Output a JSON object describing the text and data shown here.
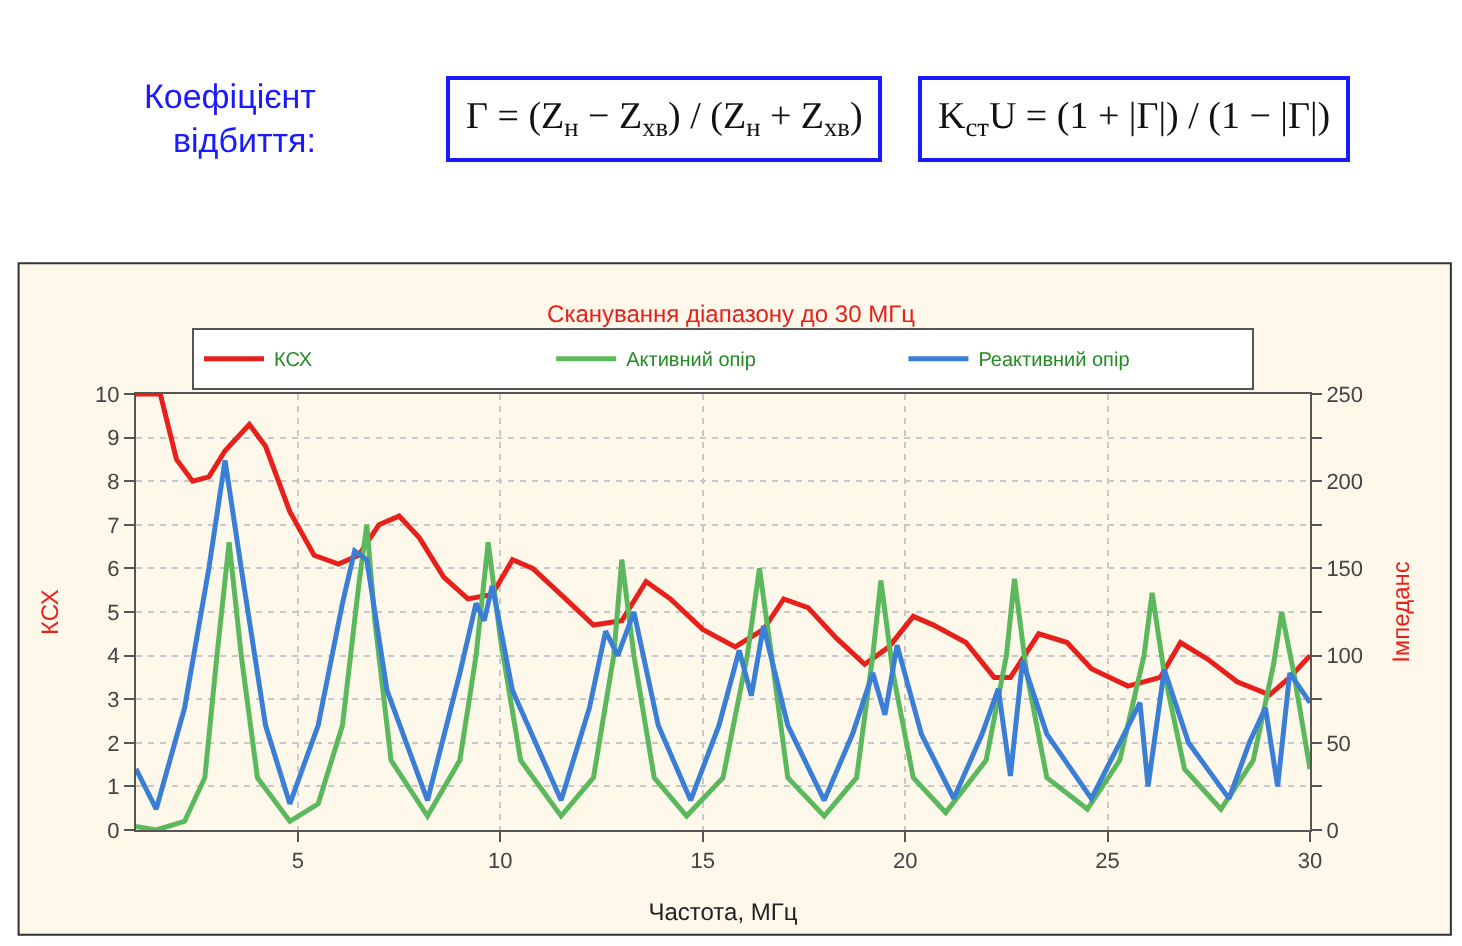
{
  "chart_data": {
    "type": "line",
    "title": "Сканування діапазону до 30 МГц",
    "xlabel": "Частота, МГц",
    "ylabel": "КСХ",
    "y2label": "Імпеданс",
    "annotations": [
      "Коефіцієнт відбиття:",
      "Γ = (Z$_{н}$ − Z$_{хв}$) / (Z$_{н}$ + Z$_{хв}$)",
      "K$_{ст}$U = (1 + |Γ|) / (1 − |Γ|)"
    ],
    "xlim": [
      1,
      30
    ],
    "xticks": [
      5,
      10,
      15,
      20,
      25,
      30
    ],
    "ylim": [
      0,
      10
    ],
    "yticks": [
      0,
      1,
      2,
      3,
      4,
      5,
      6,
      7,
      8,
      9,
      10
    ],
    "y2lim": [
      0,
      250
    ],
    "y2ticks": [
      0,
      {
        "value": 25,
        "label": null
      },
      50,
      {
        "value": 75,
        "label": null
      },
      100,
      {
        "value": 125,
        "label": null
      },
      150,
      {
        "value": 175,
        "label": null
      },
      200,
      {
        "value": 225,
        "label": null
      },
      250
    ],
    "grid": true,
    "legend": "top",
    "line_style": "solid",
    "marker": "none",
    "series": [
      {
        "name": "КСХ",
        "color": "#e8201c",
        "x": [
          1,
          1.6,
          2,
          2.4,
          2.8,
          3.2,
          3.8,
          4.2,
          4.8,
          5.4,
          6,
          6.5,
          7,
          7.5,
          8,
          8.6,
          9.2,
          9.8,
          10.3,
          10.8,
          11.5,
          12.3,
          13,
          13.6,
          14.2,
          15,
          15.8,
          16.5,
          17,
          17.6,
          18.3,
          19,
          19.6,
          20.2,
          20.7,
          21.5,
          22.2,
          22.6,
          23.3,
          24,
          24.6,
          25.5,
          26.3,
          26.8,
          27.5,
          28.2,
          29,
          29.5,
          30
        ],
        "values": [
          10,
          10,
          8.5,
          8,
          8.1,
          8.7,
          9.3,
          8.8,
          7.3,
          6.3,
          6.1,
          6.3,
          7,
          7.2,
          6.7,
          5.8,
          5.3,
          5.4,
          6.2,
          6,
          5.4,
          4.7,
          4.8,
          5.7,
          5.3,
          4.6,
          4.2,
          4.6,
          5.3,
          5.1,
          4.4,
          3.8,
          4.2,
          4.9,
          4.7,
          4.3,
          3.5,
          3.5,
          4.5,
          4.3,
          3.7,
          3.3,
          3.5,
          4.3,
          3.9,
          3.4,
          3.1,
          3.5,
          4
        ]
      },
      {
        "name": "Активний опір",
        "color": "#5cb85c",
        "axis": "y2",
        "x": [
          1,
          1.5,
          2.2,
          2.7,
          3.0,
          3.3,
          3.6,
          4.0,
          4.8,
          5.5,
          6.1,
          6.5,
          6.7,
          6.9,
          7.3,
          8.2,
          9.0,
          9.4,
          9.7,
          10.0,
          10.5,
          11.5,
          12.3,
          12.8,
          13.0,
          13.3,
          13.8,
          14.6,
          15.5,
          16.1,
          16.4,
          16.7,
          17.1,
          18.0,
          18.8,
          19.2,
          19.4,
          19.7,
          20.2,
          21.0,
          22.0,
          22.5,
          22.7,
          23.0,
          23.5,
          24.5,
          25.3,
          25.9,
          26.1,
          26.4,
          26.9,
          27.8,
          28.6,
          29.1,
          29.3,
          29.6,
          30
        ],
        "values": [
          2,
          0,
          5,
          30,
          100,
          165,
          100,
          30,
          5,
          15,
          60,
          140,
          175,
          120,
          40,
          8,
          40,
          100,
          165,
          110,
          40,
          8,
          30,
          100,
          155,
          100,
          30,
          8,
          30,
          100,
          150,
          100,
          30,
          8,
          30,
          100,
          143,
          90,
          30,
          10,
          40,
          100,
          144,
          90,
          30,
          12,
          40,
          100,
          136,
          90,
          35,
          12,
          40,
          95,
          125,
          90,
          35
        ]
      },
      {
        "name": "Реактивний опір",
        "color": "#3a7fd5",
        "axis": "y2",
        "x": [
          1,
          1.5,
          2.2,
          2.8,
          3.2,
          3.6,
          4.2,
          4.8,
          5.5,
          6.1,
          6.4,
          6.7,
          7.2,
          8.2,
          9.0,
          9.4,
          9.6,
          9.8,
          10.3,
          11.5,
          12.2,
          12.6,
          12.9,
          13.3,
          13.9,
          14.7,
          15.4,
          15.9,
          16.2,
          16.5,
          17.1,
          18.0,
          18.7,
          19.2,
          19.5,
          19.8,
          20.4,
          21.2,
          21.9,
          22.3,
          22.6,
          22.9,
          23.5,
          24.6,
          25.3,
          25.8,
          26.0,
          26.4,
          27.0,
          28.0,
          28.5,
          28.9,
          29.2,
          29.5,
          30
        ],
        "values": [
          35,
          12,
          70,
          150,
          212,
          150,
          60,
          15,
          60,
          130,
          160,
          155,
          80,
          17,
          90,
          130,
          120,
          140,
          80,
          17,
          70,
          114,
          100,
          125,
          60,
          17,
          60,
          103,
          77,
          117,
          60,
          17,
          55,
          90,
          66,
          106,
          55,
          18,
          55,
          81,
          31,
          97,
          55,
          18,
          50,
          73,
          25,
          92,
          50,
          18,
          50,
          70,
          25,
          90,
          73
        ]
      }
    ]
  }
}
